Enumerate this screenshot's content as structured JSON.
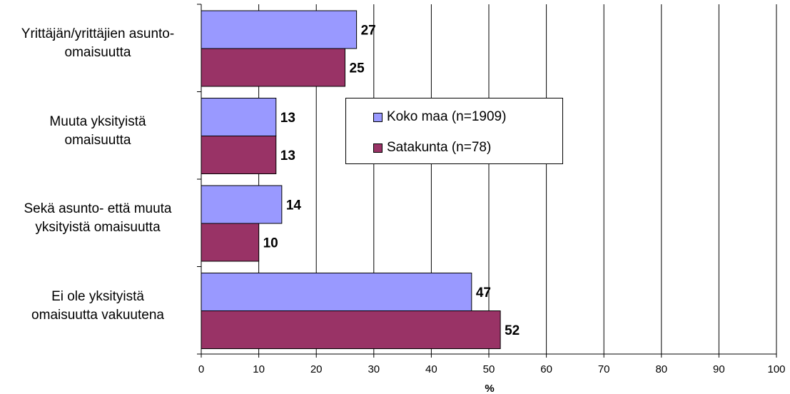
{
  "chart_data": {
    "type": "bar",
    "orientation": "horizontal",
    "categories": [
      [
        "Yrittäjän/yrittäjien asunto-",
        "omaisuutta"
      ],
      [
        "Muuta yksityistä",
        "omaisuutta"
      ],
      [
        "Sekä asunto- että muuta",
        "yksityistä omaisuutta"
      ],
      [
        "Ei ole yksityistä",
        "omaisuutta vakuutena"
      ]
    ],
    "series": [
      {
        "name": "Koko maa (n=1909)",
        "color": "#9999ff",
        "values": [
          27,
          13,
          14,
          47
        ]
      },
      {
        "name": "Satakunta (n=78)",
        "color": "#993366",
        "values": [
          25,
          13,
          10,
          52
        ]
      }
    ],
    "xlabel": "%",
    "xlim": [
      0,
      100
    ],
    "xticks": [
      0,
      10,
      20,
      30,
      40,
      50,
      60,
      70,
      80,
      90,
      100
    ],
    "grid": "vertical",
    "data_labels": true,
    "legend_position": "inside-top-center"
  }
}
